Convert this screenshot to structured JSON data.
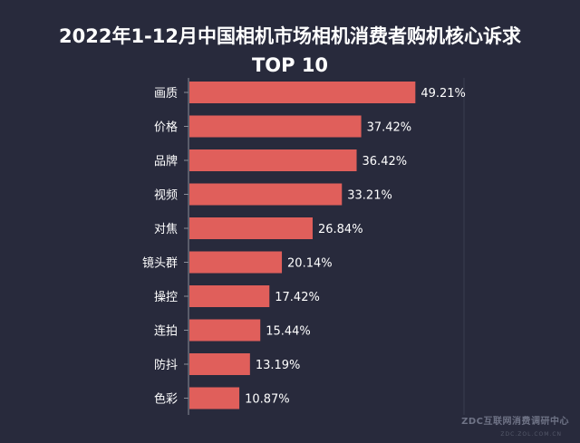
{
  "chart_data": {
    "type": "bar",
    "orientation": "horizontal",
    "title": "2022年1-12月中国相机市场相机消费者购机核心诉求",
    "subtitle": "TOP 10",
    "categories": [
      "画质",
      "价格",
      "品牌",
      "视频",
      "对焦",
      "镜头群",
      "操控",
      "连拍",
      "防抖",
      "色彩"
    ],
    "values": [
      49.21,
      37.42,
      36.42,
      33.21,
      26.84,
      20.14,
      17.42,
      15.44,
      13.19,
      10.87
    ],
    "labels": [
      "49.21%",
      "37.42%",
      "36.42%",
      "33.21%",
      "26.84%",
      "20.14%",
      "17.42%",
      "15.44%",
      "13.19%",
      "10.87%"
    ],
    "unit": "%",
    "xlim": [
      0,
      60
    ],
    "xlabel": "",
    "ylabel": "",
    "grid": false,
    "bar_color": "#e05f5b",
    "label_color": "#ffffff",
    "axis_color": "#8a8d99",
    "background": "#282a3c"
  },
  "watermark": {
    "text": "ZDC互联网消费调研中心",
    "sub": "ZDC.ZOL.COM.CN"
  }
}
